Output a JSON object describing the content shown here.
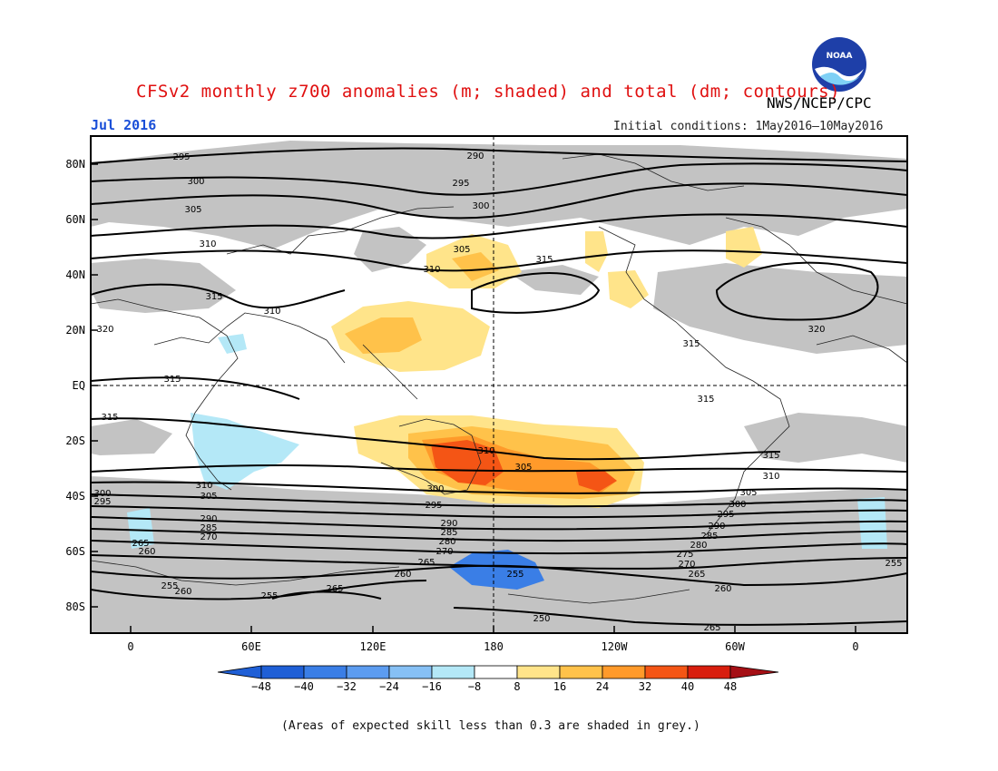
{
  "header": {
    "title": "CFSv2 monthly z700 anomalies (m; shaded) and total (dm; contours)",
    "agency": "NWS/NCEP/CPC",
    "month": "Jul 2016",
    "initial_conditions": "Initial conditions: 1May2016–10May2016",
    "logo_text": "NOAA"
  },
  "map": {
    "lat_labels": [
      "80N",
      "60N",
      "40N",
      "20N",
      "EQ",
      "20S",
      "40S",
      "60S",
      "80S"
    ],
    "lon_labels": [
      "0",
      "60E",
      "120E",
      "180",
      "120W",
      "60W",
      "0"
    ],
    "contour_labels": [
      "290",
      "295",
      "300",
      "305",
      "310",
      "315",
      "320",
      "310",
      "305",
      "300",
      "295",
      "290",
      "285",
      "280",
      "275",
      "270",
      "265",
      "260",
      "255",
      "250",
      "265"
    ]
  },
  "colorbar": {
    "ticks": [
      "−48",
      "−40",
      "−32",
      "−24",
      "−16",
      "−8",
      "8",
      "16",
      "24",
      "32",
      "40",
      "48"
    ],
    "colors": [
      "#1f5fd6",
      "#3a7ee6",
      "#5c9cf0",
      "#86c0f5",
      "#b4e8f7",
      "#ffffff",
      "#ffe48a",
      "#ffc24a",
      "#ff9a2a",
      "#f45515",
      "#d81e0e",
      "#a50f15"
    ]
  },
  "footnote": "(Areas of expected skill less than 0.3 are shaded in grey.)"
}
